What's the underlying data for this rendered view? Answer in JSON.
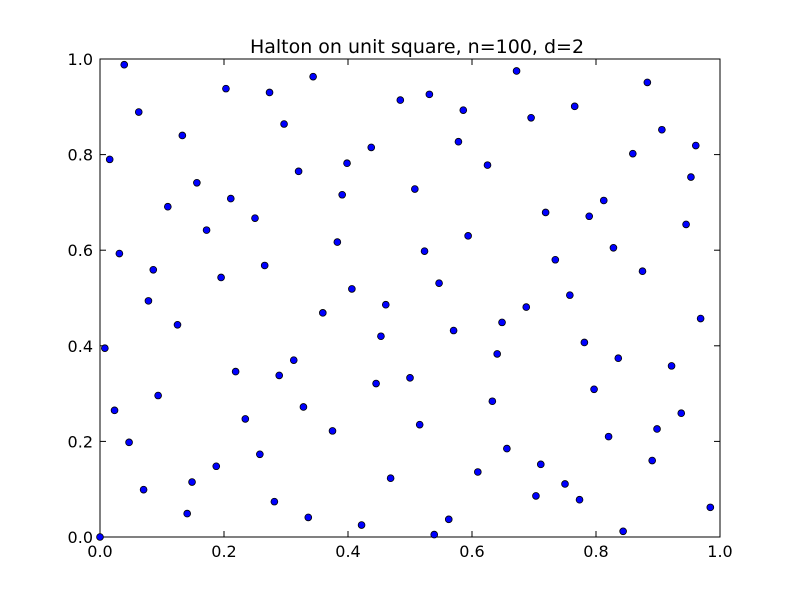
{
  "chart_data": {
    "type": "scatter",
    "title": "Halton on unit square, n=100, d=2",
    "xlabel": "",
    "ylabel": "",
    "xlim": [
      0,
      1
    ],
    "ylim": [
      0,
      1
    ],
    "x_ticks": [
      "0.0",
      "0.2",
      "0.4",
      "0.6",
      "0.8",
      "1.0"
    ],
    "y_ticks": [
      "0.0",
      "0.2",
      "0.4",
      "0.6",
      "0.8",
      "1.0"
    ],
    "grid": false,
    "marker_color": "#0000ff",
    "series": [
      {
        "points": [
          [
            0.0,
            0.0
          ],
          [
            0.5,
            0.333
          ],
          [
            0.25,
            0.667
          ],
          [
            0.75,
            0.111
          ],
          [
            0.125,
            0.444
          ],
          [
            0.625,
            0.778
          ],
          [
            0.375,
            0.222
          ],
          [
            0.875,
            0.556
          ],
          [
            0.0625,
            0.889
          ],
          [
            0.5625,
            0.037
          ],
          [
            0.3125,
            0.37
          ],
          [
            0.8125,
            0.704
          ],
          [
            0.1875,
            0.148
          ],
          [
            0.6875,
            0.481
          ],
          [
            0.4375,
            0.815
          ],
          [
            0.9375,
            0.259
          ],
          [
            0.03125,
            0.593
          ],
          [
            0.53125,
            0.926
          ],
          [
            0.28125,
            0.074
          ],
          [
            0.78125,
            0.407
          ],
          [
            0.15625,
            0.741
          ],
          [
            0.65625,
            0.185
          ],
          [
            0.40625,
            0.519
          ],
          [
            0.90625,
            0.852
          ],
          [
            0.09375,
            0.296
          ],
          [
            0.59375,
            0.63
          ],
          [
            0.34375,
            0.963
          ],
          [
            0.84375,
            0.012
          ],
          [
            0.21875,
            0.346
          ],
          [
            0.71875,
            0.679
          ],
          [
            0.46875,
            0.123
          ],
          [
            0.96875,
            0.457
          ],
          [
            0.015625,
            0.79
          ],
          [
            0.515625,
            0.235
          ],
          [
            0.265625,
            0.568
          ],
          [
            0.765625,
            0.901
          ],
          [
            0.140625,
            0.049
          ],
          [
            0.640625,
            0.383
          ],
          [
            0.390625,
            0.716
          ],
          [
            0.890625,
            0.16
          ],
          [
            0.078125,
            0.494
          ],
          [
            0.578125,
            0.827
          ],
          [
            0.328125,
            0.272
          ],
          [
            0.828125,
            0.605
          ],
          [
            0.203125,
            0.938
          ],
          [
            0.703125,
            0.086
          ],
          [
            0.453125,
            0.42
          ],
          [
            0.953125,
            0.753
          ],
          [
            0.046875,
            0.198
          ],
          [
            0.546875,
            0.531
          ],
          [
            0.296875,
            0.864
          ],
          [
            0.796875,
            0.309
          ],
          [
            0.171875,
            0.642
          ],
          [
            0.671875,
            0.975
          ],
          [
            0.421875,
            0.025
          ],
          [
            0.921875,
            0.358
          ],
          [
            0.109375,
            0.691
          ],
          [
            0.609375,
            0.136
          ],
          [
            0.359375,
            0.469
          ],
          [
            0.859375,
            0.802
          ],
          [
            0.234375,
            0.247
          ],
          [
            0.734375,
            0.58
          ],
          [
            0.484375,
            0.914
          ],
          [
            0.984375,
            0.062
          ],
          [
            0.0078125,
            0.395
          ],
          [
            0.5078125,
            0.728
          ],
          [
            0.2578125,
            0.173
          ],
          [
            0.7578125,
            0.506
          ],
          [
            0.1328125,
            0.84
          ],
          [
            0.6328125,
            0.284
          ],
          [
            0.3828125,
            0.617
          ],
          [
            0.8828125,
            0.951
          ],
          [
            0.0703125,
            0.099
          ],
          [
            0.5703125,
            0.432
          ],
          [
            0.3203125,
            0.765
          ],
          [
            0.8203125,
            0.21
          ],
          [
            0.1953125,
            0.543
          ],
          [
            0.6953125,
            0.877
          ],
          [
            0.4453125,
            0.321
          ],
          [
            0.9453125,
            0.654
          ],
          [
            0.0234375,
            0.265
          ],
          [
            0.5234375,
            0.598
          ],
          [
            0.2734375,
            0.93
          ],
          [
            0.7734375,
            0.078
          ],
          [
            0.1484375,
            0.115
          ],
          [
            0.6484375,
            0.449
          ],
          [
            0.3984375,
            0.782
          ],
          [
            0.8984375,
            0.226
          ],
          [
            0.0859375,
            0.559
          ],
          [
            0.5859375,
            0.893
          ],
          [
            0.3359375,
            0.041
          ],
          [
            0.8359375,
            0.374
          ],
          [
            0.2109375,
            0.708
          ],
          [
            0.7109375,
            0.152
          ],
          [
            0.4609375,
            0.486
          ],
          [
            0.9609375,
            0.819
          ],
          [
            0.0390625,
            0.988
          ],
          [
            0.5390625,
            0.005
          ],
          [
            0.2890625,
            0.338
          ],
          [
            0.7890625,
            0.671
          ]
        ]
      }
    ]
  }
}
